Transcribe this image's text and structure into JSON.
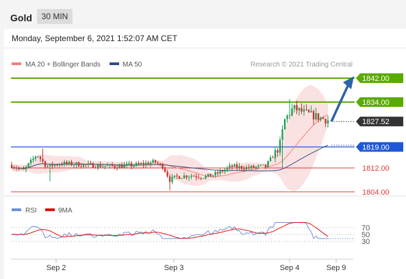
{
  "header": {
    "symbol": "Gold",
    "timeframe": "30 MIN",
    "datetime": "Monday, September 6, 2021 1:52:07 AM CET"
  },
  "legend": {
    "main": [
      {
        "label": "MA 20 + Bollinger Bands",
        "color": "#f08080"
      },
      {
        "label": "MA 50",
        "color": "#2e4e8a"
      }
    ],
    "rsi": [
      {
        "label": "RSI",
        "color": "#6f8fd8"
      },
      {
        "label": "9MA",
        "color": "#dd1111"
      }
    ]
  },
  "copyright": "Research © 2021 Trading Central",
  "colors": {
    "green_level": "#5aaa00",
    "blue_level": "#1e58d6",
    "red_level": "#e23a3a",
    "arrow": "#2d63a8",
    "price_tag": "#333333",
    "band_fill": "#fbe2e2"
  },
  "chart_data": {
    "type": "candlestick",
    "x_ticks": [
      "Sep 2",
      "Sep 3",
      "Sep 4",
      "Sep 9"
    ],
    "price_range": [
      1800,
      1846
    ],
    "current_price": 1827.52,
    "current_price_label": "1827.52",
    "levels": [
      {
        "value": 1842.0,
        "label": "1842.00",
        "kind": "resistance",
        "color": "green"
      },
      {
        "value": 1834.0,
        "label": "1834.00",
        "kind": "resistance",
        "color": "green"
      },
      {
        "value": 1819.0,
        "label": "1819.00",
        "kind": "pivot",
        "color": "blue"
      },
      {
        "value": 1812.0,
        "label": "1812.00",
        "kind": "support",
        "color": "red"
      },
      {
        "value": 1804.0,
        "label": "1804.00",
        "kind": "support",
        "color": "red"
      }
    ],
    "forecast_arrow": {
      "from": 1827.5,
      "to": 1841.5
    },
    "rsi": {
      "levels": [
        70,
        50,
        30
      ],
      "level_labels": [
        "70",
        "50",
        "30"
      ],
      "range": [
        15,
        90
      ]
    }
  }
}
